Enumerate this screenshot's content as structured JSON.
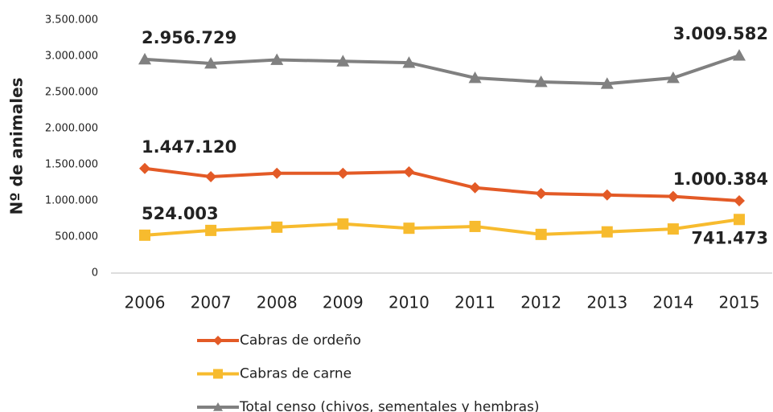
{
  "chart_data": {
    "type": "line",
    "y_label": "Nº de animales",
    "categories": [
      "2006",
      "2007",
      "2008",
      "2009",
      "2010",
      "2011",
      "2012",
      "2013",
      "2014",
      "2015"
    ],
    "series": [
      {
        "name": "Cabras de ordeño",
        "color": "#e35a26",
        "marker": "diamond",
        "values": [
          1447120,
          1333000,
          1380000,
          1380000,
          1400000,
          1180000,
          1100000,
          1080000,
          1060000,
          1000384
        ],
        "value_labels": [
          "1.447.120",
          null,
          null,
          null,
          null,
          null,
          null,
          null,
          null,
          "1.000.384"
        ]
      },
      {
        "name": "Cabras de carne",
        "color": "#f7bb2e",
        "marker": "square",
        "values": [
          524003,
          590000,
          635000,
          680000,
          620000,
          645000,
          535000,
          570000,
          610000,
          741473
        ],
        "value_labels": [
          "524.003",
          null,
          null,
          null,
          null,
          null,
          null,
          null,
          null,
          "741.473"
        ]
      },
      {
        "name": "Total censo (chivos, sementales y hembras)",
        "color": "#808080",
        "marker": "triangle",
        "values": [
          2956729,
          2900000,
          2950000,
          2930000,
          2910000,
          2700000,
          2645000,
          2620000,
          2700000,
          3009582
        ],
        "value_labels": [
          "2.956.729",
          null,
          null,
          null,
          null,
          null,
          null,
          null,
          null,
          "3.009.582"
        ]
      }
    ],
    "ylim": [
      0,
      3500000
    ],
    "yticks": [
      0,
      {
        "value": 500000,
        "label": "500.000"
      },
      {
        "value": 1000000,
        "label": "1.000.000"
      },
      {
        "value": 1500000,
        "label": "1.500.000"
      },
      {
        "value": 2000000,
        "label": "2.000.000"
      },
      {
        "value": 2500000,
        "label": "2.500.000"
      },
      {
        "value": 3000000,
        "label": "3.000.000"
      },
      {
        "value": 3500000,
        "label": "3.500.000"
      }
    ],
    "grid": false
  }
}
